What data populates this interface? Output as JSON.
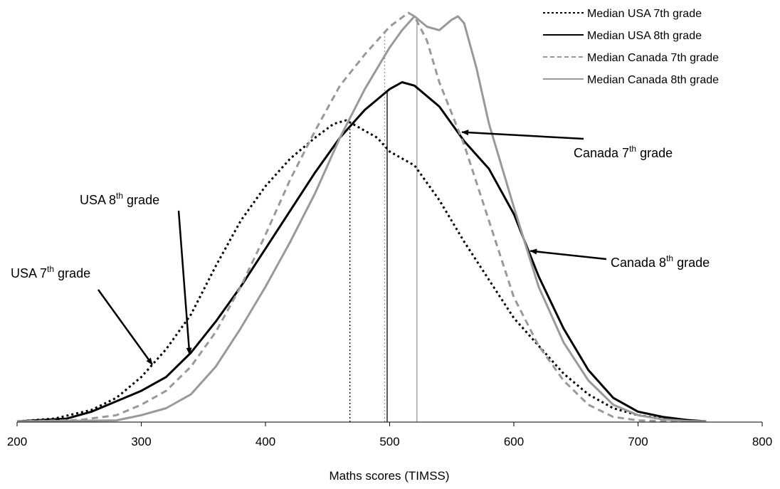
{
  "chart_data": {
    "type": "line",
    "xlabel": "Maths scores (TIMSS)",
    "ylabel": "",
    "xlim": [
      200,
      800
    ],
    "x_ticks": [
      "200",
      "300",
      "400",
      "500",
      "600",
      "700",
      "800"
    ],
    "grid": false,
    "legend_position": "top-right",
    "series": [
      {
        "name": "USA 7th grade",
        "color": "#000000",
        "dash": "dotted",
        "x": [
          200,
          230,
          260,
          280,
          300,
          320,
          340,
          360,
          380,
          400,
          420,
          440,
          455,
          465,
          470,
          480,
          490,
          500,
          520,
          540,
          560,
          580,
          600,
          620,
          640,
          660,
          680,
          700,
          720,
          740,
          755
        ],
        "y": [
          0.2,
          1.0,
          3.5,
          7.0,
          13,
          21,
          31,
          45,
          58,
          68,
          76,
          82,
          86,
          87,
          86,
          84,
          82,
          78,
          74,
          64,
          52,
          41,
          30,
          22,
          14,
          8,
          4,
          2,
          1,
          0.5,
          0.2
        ]
      },
      {
        "name": "USA 8th grade",
        "color": "#000000",
        "dash": "solid",
        "x": [
          200,
          240,
          260,
          280,
          300,
          320,
          340,
          360,
          380,
          400,
          420,
          440,
          460,
          480,
          500,
          510,
          520,
          540,
          560,
          580,
          600,
          620,
          640,
          660,
          680,
          700,
          720,
          740,
          755
        ],
        "y": [
          0.2,
          1.0,
          3.0,
          6.0,
          9.0,
          13,
          20,
          29,
          39,
          50,
          61,
          72,
          82,
          90,
          96,
          98,
          97,
          91,
          81,
          73,
          60,
          42,
          27,
          15,
          7,
          3,
          1.5,
          0.6,
          0.2
        ]
      },
      {
        "name": "Canada 7th grade",
        "color": "#999999",
        "dash": "dashed",
        "x": [
          200,
          250,
          280,
          300,
          320,
          340,
          360,
          380,
          400,
          420,
          440,
          460,
          480,
          500,
          515,
          520,
          530,
          540,
          560,
          580,
          600,
          620,
          640,
          660,
          680,
          700,
          720,
          740,
          755
        ],
        "y": [
          0.2,
          0.6,
          2.0,
          5.0,
          9.0,
          16,
          26,
          39,
          54,
          70,
          84,
          97,
          106,
          114,
          118,
          117,
          110,
          98,
          80,
          58,
          36,
          22,
          12,
          5,
          1.5,
          0.5,
          0.3,
          0.2,
          0.2
        ]
      },
      {
        "name": "Canada 8th grade",
        "color": "#999999",
        "dash": "solid",
        "x": [
          200,
          280,
          300,
          320,
          340,
          360,
          380,
          400,
          420,
          440,
          460,
          480,
          500,
          510,
          520,
          530,
          540,
          550,
          555,
          560,
          570,
          580,
          600,
          620,
          640,
          660,
          680,
          700,
          720,
          740,
          755
        ],
        "y": [
          0.2,
          0.5,
          2.0,
          4.0,
          8.0,
          16,
          27,
          39,
          52,
          66,
          82,
          96,
          108,
          113,
          117,
          114,
          113,
          116,
          117,
          115,
          102,
          86,
          62,
          39,
          23,
          12,
          5,
          2,
          0.8,
          0.3,
          0.2
        ]
      }
    ],
    "medians": [
      {
        "name": "Median USA 7th grade",
        "x": 468,
        "color": "#000000",
        "dash": "dotted"
      },
      {
        "name": "Median USA 8th grade",
        "x": 498,
        "color": "#000000",
        "dash": "solid"
      },
      {
        "name": "Median Canada 7th grade",
        "x": 496,
        "color": "#999999",
        "dash": "dotted"
      },
      {
        "name": "Median Canada 8th grade",
        "x": 522,
        "color": "#999999",
        "dash": "solid"
      }
    ],
    "legend": [
      {
        "label": "Median USA 7th grade",
        "color": "#000000",
        "dash": "dotted"
      },
      {
        "label": "Median USA 8th grade",
        "color": "#000000",
        "dash": "solid"
      },
      {
        "label": "Median Canada 7th grade",
        "color": "#999999",
        "dash": "dashed"
      },
      {
        "label": "Median Canada 8th grade",
        "color": "#999999",
        "dash": "solid"
      }
    ],
    "annotations": [
      {
        "id": "usa7",
        "prefix": "USA 7",
        "sup": "th",
        "suffix": " grade",
        "series": "USA 7th grade",
        "target_x": 310
      },
      {
        "id": "usa8",
        "prefix": "USA 8",
        "sup": "th",
        "suffix": " grade",
        "series": "USA 8th grade",
        "target_x": 340
      },
      {
        "id": "can7",
        "prefix": "Canada 7",
        "sup": "th",
        "suffix": " grade",
        "series": "Canada 7th grade",
        "target_x": 556
      },
      {
        "id": "can8",
        "prefix": "Canada 8",
        "sup": "th",
        "suffix": " grade",
        "series": "Canada 8th grade",
        "target_x": 611
      }
    ]
  }
}
